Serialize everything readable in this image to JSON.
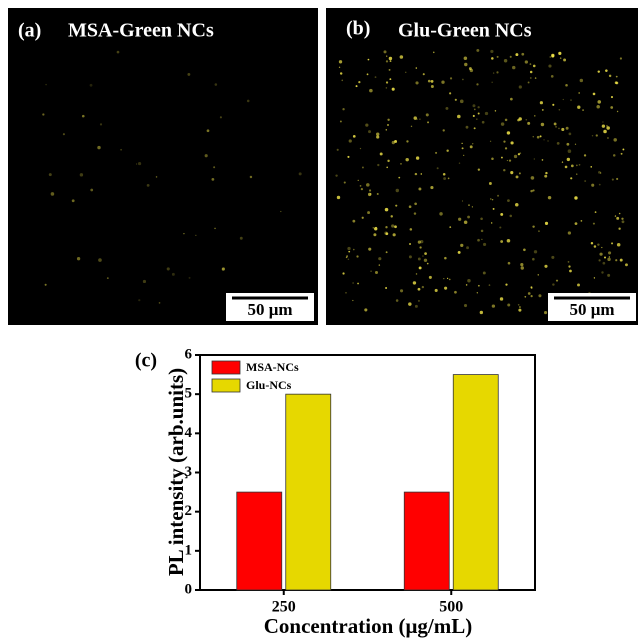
{
  "panels": [
    {
      "label": "(a)",
      "title": "MSA-Green NCs",
      "scale_bar": "50 μm"
    },
    {
      "label": "(b)",
      "title": "Glu-Green NCs",
      "scale_bar": "50 μm"
    }
  ],
  "chart_data": {
    "type": "bar",
    "panel_label": "(c)",
    "x_label": "Concentration (μg/mL)",
    "y_label": "PL intensity (arb.units)",
    "categories": [
      "250",
      "500"
    ],
    "series": [
      {
        "name": "MSA-NCs",
        "color": "#ff0000",
        "values": [
          2.5,
          2.5
        ]
      },
      {
        "name": "Glu-NCs",
        "color": "#e6d800",
        "values": [
          5,
          5.5
        ]
      }
    ],
    "ylim": [
      0,
      6
    ],
    "yticks": [
      0,
      1,
      2,
      3,
      4,
      5,
      6
    ],
    "legend": "upper left"
  }
}
